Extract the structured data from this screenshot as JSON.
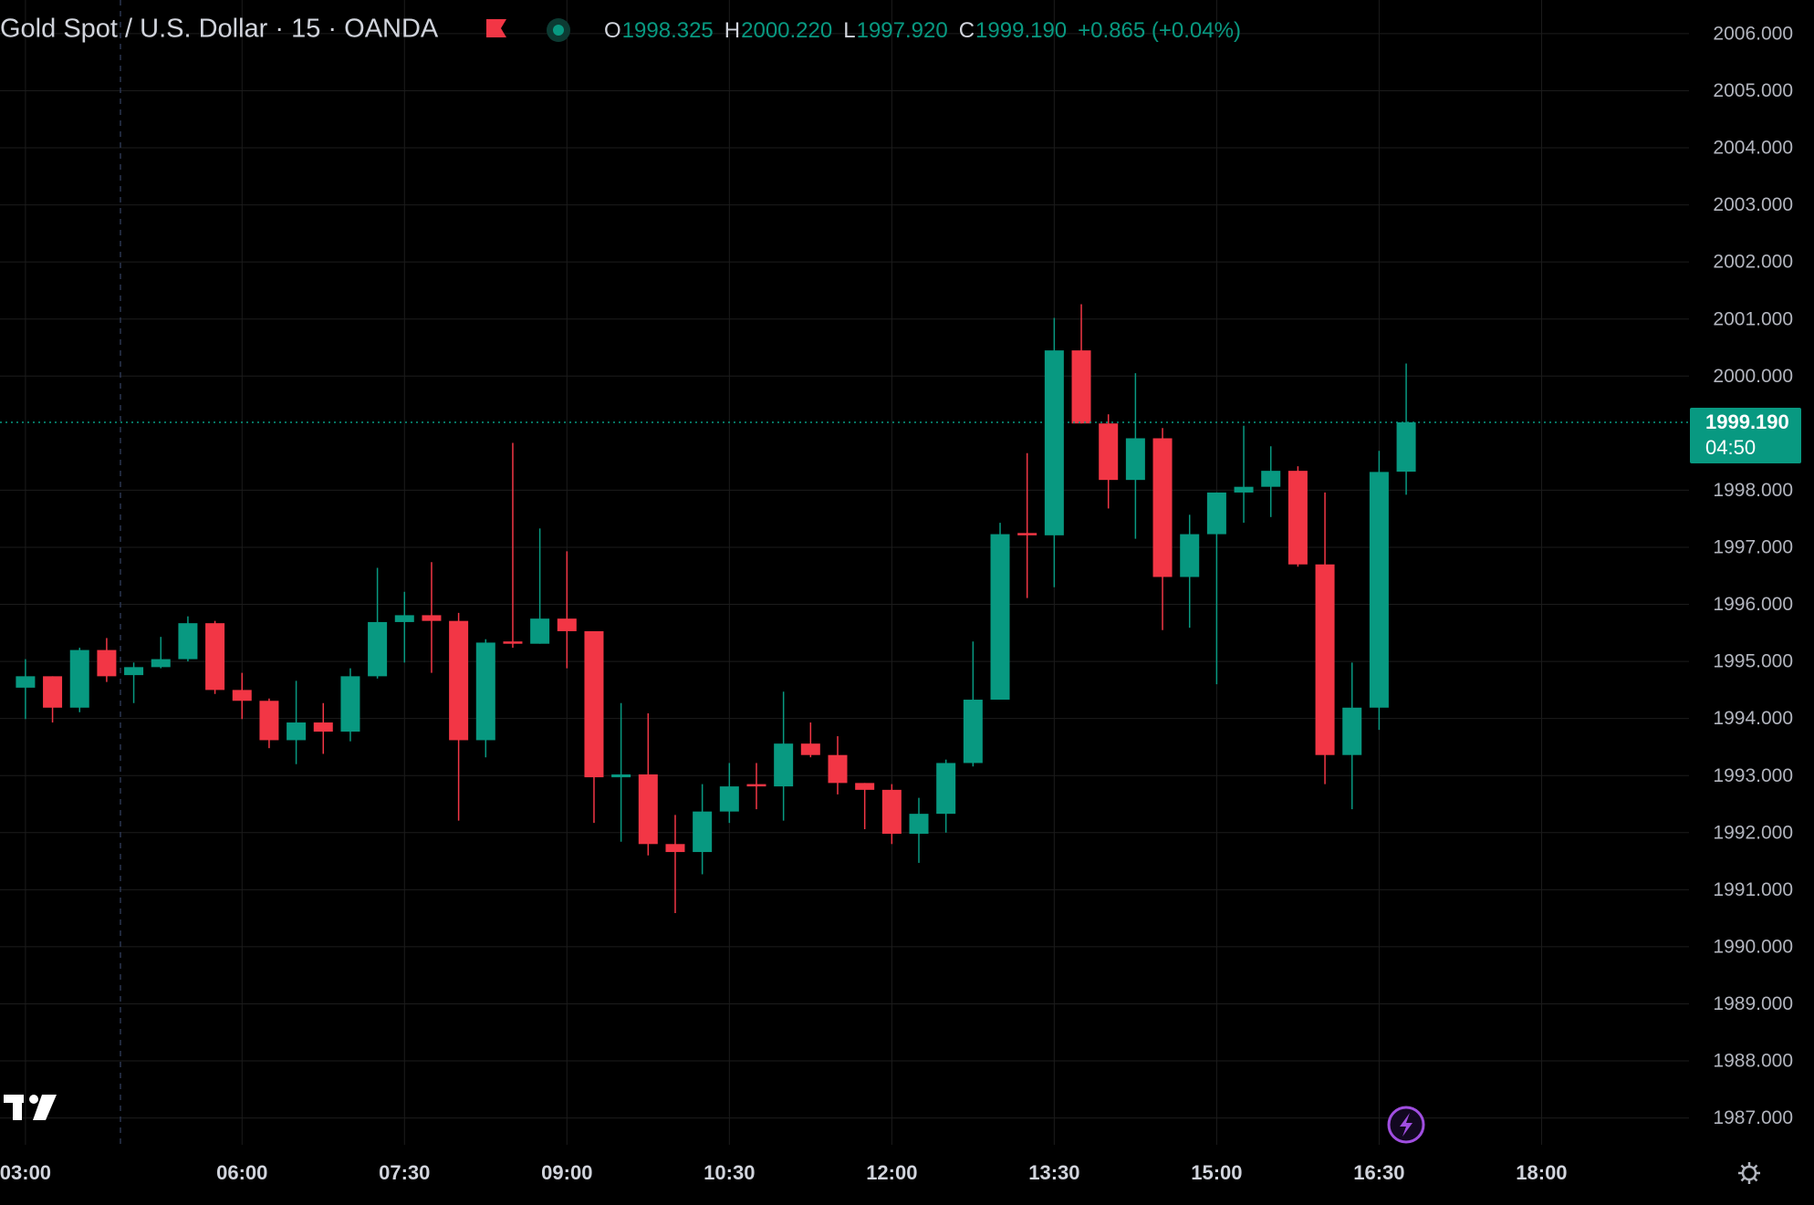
{
  "chart_data": {
    "type": "candlestick",
    "title": "Gold Spot / U.S. Dollar · 15 · OANDA",
    "ohlc_legend": [
      {
        "key": "O",
        "text": "1998.325"
      },
      {
        "key": "H",
        "text": "2000.220"
      },
      {
        "key": "L",
        "text": "1997.920"
      },
      {
        "key": "C",
        "text": "1999.190"
      }
    ],
    "change": "+0.865 (+0.04%)",
    "price_label": {
      "value": 1999.19,
      "label": "1999.190"
    },
    "countdown": "04:50",
    "up_color": "#089981",
    "down_color": "#f23645",
    "grid": true,
    "categories": [
      "03:00",
      null,
      null,
      null,
      null,
      null,
      null,
      null,
      "06:00",
      null,
      null,
      null,
      null,
      null,
      "07:30",
      null,
      null,
      null,
      null,
      null,
      "09:00",
      null,
      null,
      null,
      null,
      null,
      "10:30",
      null,
      null,
      null,
      null,
      null,
      "12:00",
      null,
      null,
      null,
      null,
      null,
      "13:30",
      null,
      null,
      null,
      null,
      null,
      "15:00",
      null,
      null,
      null,
      null,
      null,
      "16:30",
      null,
      null,
      null,
      null,
      null,
      "18:00",
      null,
      null,
      null,
      null,
      null
    ],
    "open": [
      1994.54,
      1994.74,
      1994.19,
      1995.2,
      1994.76,
      1994.9,
      1995.04,
      1995.67,
      1994.5,
      1994.31,
      1993.62,
      1993.93,
      1993.77,
      1994.74,
      1995.69,
      1995.81,
      1995.71,
      1993.62,
      1995.35,
      1995.31,
      1995.75,
      1995.53,
      1992.97,
      1993.02,
      1991.8,
      1991.66,
      1992.37,
      1992.85,
      1992.81,
      1993.56,
      1993.36,
      1992.87,
      1992.75,
      1991.98,
      1992.33,
      1993.22,
      1994.33,
      1997.25,
      1997.21,
      2000.45,
      1999.17,
      1998.18,
      1998.91,
      1996.48,
      1997.23,
      1997.96,
      1998.06,
      1998.34,
      1996.7,
      1993.36,
      1994.19,
      1998.325,
      null,
      null,
      null,
      null,
      null,
      null,
      null,
      null,
      null,
      null
    ],
    "high": [
      1995.04,
      1994.74,
      1995.24,
      1995.41,
      1994.98,
      1995.43,
      1995.79,
      1995.71,
      1994.8,
      1994.35,
      1994.66,
      1994.27,
      1994.88,
      1996.64,
      1996.22,
      1996.74,
      1995.85,
      1995.39,
      1998.83,
      1997.33,
      1996.93,
      1995.53,
      1994.27,
      1994.09,
      1992.31,
      1992.85,
      1993.22,
      1993.22,
      1994.47,
      1993.93,
      1993.69,
      1992.87,
      1992.85,
      1992.61,
      1993.28,
      1995.35,
      1997.43,
      1998.65,
      2001.02,
      2001.26,
      1999.33,
      2000.05,
      1999.09,
      1997.57,
      1997.96,
      1999.13,
      1998.77,
      1998.42,
      1997.96,
      1994.98,
      1998.69,
      2000.22,
      null,
      null,
      null,
      null,
      null,
      null,
      null,
      null,
      null,
      null
    ],
    "low": [
      1993.99,
      1993.93,
      1994.11,
      1994.64,
      1994.27,
      1994.88,
      1995.0,
      1994.43,
      1993.99,
      1993.48,
      1993.2,
      1993.38,
      1993.6,
      1994.7,
      1994.98,
      1994.8,
      1992.21,
      1993.32,
      1995.24,
      1995.31,
      1994.88,
      1992.17,
      1991.84,
      1991.6,
      1990.59,
      1991.27,
      1992.17,
      1992.41,
      1992.21,
      1993.32,
      1992.67,
      1992.06,
      1991.8,
      1991.47,
      1992.0,
      1993.16,
      1994.33,
      1996.11,
      1996.3,
      1999.17,
      1997.68,
      1997.15,
      1995.55,
      1995.59,
      1994.6,
      1997.43,
      1997.53,
      1996.66,
      1992.85,
      1992.41,
      1993.8,
      1997.92,
      null,
      null,
      null,
      null,
      null,
      null,
      null,
      null,
      null,
      null
    ],
    "close": [
      1994.74,
      1994.19,
      1995.2,
      1994.74,
      1994.9,
      1995.04,
      1995.67,
      1994.5,
      1994.31,
      1993.62,
      1993.93,
      1993.77,
      1994.74,
      1995.69,
      1995.81,
      1995.71,
      1993.62,
      1995.33,
      1995.31,
      1995.75,
      1995.53,
      1992.97,
      1993.02,
      1991.8,
      1991.66,
      1992.37,
      1992.81,
      1992.81,
      1993.56,
      1993.36,
      1992.87,
      1992.75,
      1991.98,
      1992.33,
      1993.22,
      1994.33,
      1997.23,
      1997.21,
      2000.45,
      1999.17,
      1998.18,
      1998.91,
      1996.48,
      1997.23,
      1997.96,
      1998.06,
      1998.34,
      1996.7,
      1993.36,
      1994.19,
      1998.32,
      1999.19,
      null,
      null,
      null,
      null,
      null,
      null,
      null,
      null,
      null,
      null
    ],
    "ylim": [
      1986.53,
      2006.59
    ],
    "yticks": [
      {
        "value": 1987,
        "label": "1987.000"
      },
      {
        "value": 1988,
        "label": "1988.000"
      },
      {
        "value": 1989,
        "label": "1989.000"
      },
      {
        "value": 1990,
        "label": "1990.000"
      },
      {
        "value": 1991,
        "label": "1991.000"
      },
      {
        "value": 1992,
        "label": "1992.000"
      },
      {
        "value": 1993,
        "label": "1993.000"
      },
      {
        "value": 1994,
        "label": "1994.000"
      },
      {
        "value": 1995,
        "label": "1995.000"
      },
      {
        "value": 1996,
        "label": "1996.000"
      },
      {
        "value": 1997,
        "label": "1997.000"
      },
      {
        "value": 1998,
        "label": "1998.000"
      },
      {
        "value": 2000,
        "label": "2000.000"
      },
      {
        "value": 2001,
        "label": "2001.000"
      },
      {
        "value": 2002,
        "label": "2002.000"
      },
      {
        "value": 2003,
        "label": "2003.000"
      },
      {
        "value": 2004,
        "label": "2004.000"
      },
      {
        "value": 2005,
        "label": "2005.000"
      },
      {
        "value": 2006,
        "label": "2006.000"
      }
    ]
  }
}
